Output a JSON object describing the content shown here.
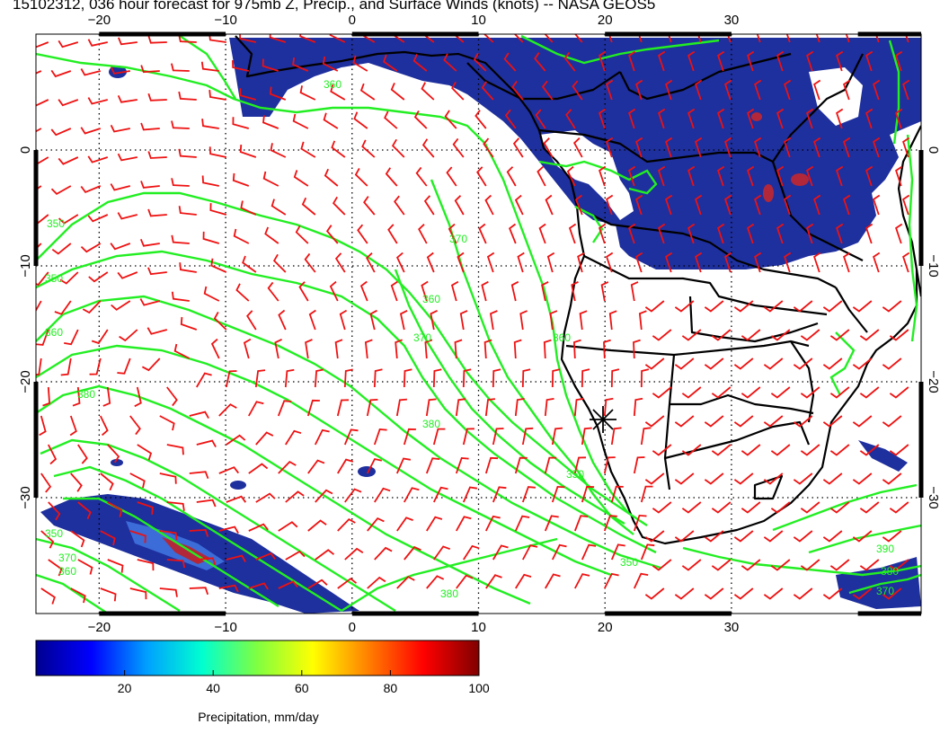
{
  "title": "15102312, 036 hour forecast for 975mb Z, Precip., and Surface Winds (knots) -- NASA GEOS5",
  "map": {
    "lon_range": [
      -25,
      45
    ],
    "lat_range": [
      -40,
      10
    ],
    "lon_ticks": [
      "−20",
      "−10",
      "0",
      "10",
      "20",
      "30"
    ],
    "lat_ticks": [
      "0",
      "−10",
      "−20",
      "−30"
    ],
    "station_marker": "asterisk",
    "contour_labels": [
      "350",
      "360",
      "370",
      "380",
      "390"
    ]
  },
  "colors": {
    "contour": "#22ee22",
    "barb": "#ee1111",
    "coast": "#000000",
    "precip_low": "#1a2a9a",
    "precip_high": "#8a1010"
  },
  "colorbar": {
    "label": "Precipitation, mm/day",
    "ticks": [
      "20",
      "40",
      "60",
      "80",
      "100"
    ],
    "stops": [
      "#00008f",
      "#0000ff",
      "#00a0ff",
      "#00ffd0",
      "#80ff40",
      "#ffff00",
      "#ff8000",
      "#ff0000",
      "#800000"
    ]
  }
}
